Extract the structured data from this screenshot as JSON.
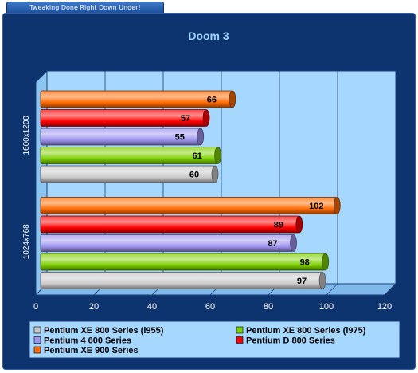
{
  "banner": {
    "text": "Tweaking Done Right Down Under!"
  },
  "colors": {
    "frame_bg": "#0e3470",
    "plot_bg": "#a6d7ff",
    "title": "#9cd4ff",
    "axis_text": "#ffffff"
  },
  "chart_data": {
    "type": "bar",
    "orientation": "horizontal",
    "title": "Doom 3",
    "categories": [
      "1600x1200",
      "1024x768"
    ],
    "series": [
      {
        "name": "Pentium XE 900 Series",
        "color": "#ff6a00",
        "values": [
          66,
          102
        ]
      },
      {
        "name": "Pentium D 800 Series",
        "color": "#ff0000",
        "values": [
          57,
          89
        ]
      },
      {
        "name": "Pentium 4 600 Series",
        "color": "#9e94f0",
        "values": [
          55,
          87
        ]
      },
      {
        "name": "Pentium XE 800 Series (i975)",
        "color": "#7ccf00",
        "values": [
          61,
          98
        ]
      },
      {
        "name": "Pentium XE 800 Series (i955)",
        "color": "#c8c8c8",
        "values": [
          60,
          97
        ]
      }
    ],
    "legend_order": [
      "Pentium XE 800 Series (i955)",
      "Pentium XE 800 Series (i975)",
      "Pentium 4 600 Series",
      "Pentium D 800 Series",
      "Pentium XE 900 Series"
    ],
    "xlim": [
      0,
      120
    ],
    "xticks": [
      "0",
      "20",
      "40",
      "60",
      "80",
      "100",
      "120"
    ],
    "grid": true,
    "data_labels": true,
    "legend_position": "bottom"
  }
}
